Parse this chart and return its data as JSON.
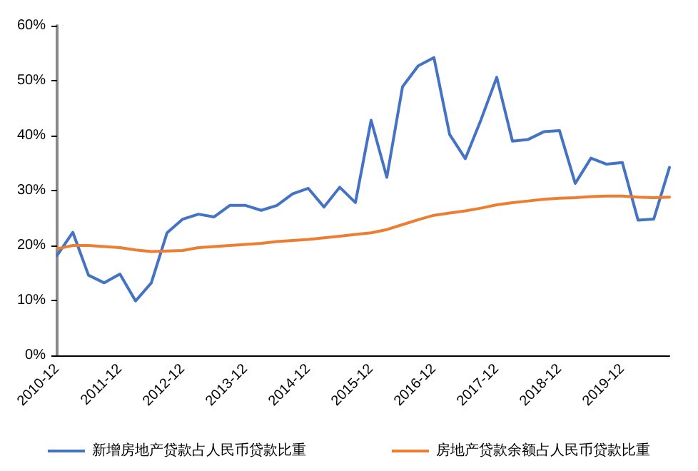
{
  "chart_data": {
    "type": "line",
    "categories": [
      "2010-12",
      null,
      null,
      null,
      "2011-12",
      null,
      null,
      null,
      "2012-12",
      null,
      null,
      null,
      "2013-12",
      null,
      null,
      null,
      "2014-12",
      null,
      null,
      null,
      "2015-12",
      null,
      null,
      null,
      "2016-12",
      null,
      null,
      null,
      "2017-12",
      null,
      null,
      null,
      "2018-12",
      null,
      null,
      null,
      "2019-12",
      null,
      null,
      null
    ],
    "series": [
      {
        "name": "新增房地产贷款占人民币贷款比重",
        "color": "#4472c4",
        "values": [
          18.2,
          22.4,
          14.6,
          13.2,
          14.8,
          9.9,
          13.2,
          22.3,
          24.8,
          25.7,
          25.2,
          27.3,
          27.3,
          26.4,
          27.3,
          29.4,
          30.4,
          27.0,
          30.6,
          27.8,
          42.8,
          32.4,
          48.9,
          52.7,
          54.2,
          40.2,
          35.8,
          42.9,
          50.6,
          39.0,
          39.3,
          40.7,
          40.9,
          31.3,
          35.9,
          34.8,
          35.1,
          24.6,
          24.8,
          34.2
        ]
      },
      {
        "name": "房地产贷款余额占人民币贷款比重",
        "color": "#ed7d31",
        "values": [
          19.4,
          20.0,
          20.0,
          19.8,
          19.6,
          19.2,
          18.9,
          19.0,
          19.1,
          19.6,
          19.8,
          20.0,
          20.2,
          20.4,
          20.7,
          20.9,
          21.1,
          21.4,
          21.7,
          22.0,
          22.3,
          22.9,
          23.8,
          24.7,
          25.5,
          25.9,
          26.3,
          26.8,
          27.4,
          27.8,
          28.1,
          28.4,
          28.6,
          28.7,
          28.9,
          29.0,
          29.0,
          28.8,
          28.7,
          28.8
        ]
      }
    ],
    "ylim": [
      0,
      60
    ],
    "yticks": [
      {
        "value": 0,
        "label": "0%"
      },
      {
        "value": 10,
        "label": "10%"
      },
      {
        "value": 20,
        "label": "20%"
      },
      {
        "value": 30,
        "label": "30%"
      },
      {
        "value": 40,
        "label": "40%"
      },
      {
        "value": 50,
        "label": "50%"
      },
      {
        "value": 60,
        "label": "60%"
      }
    ],
    "grid": false,
    "legend": "bottom",
    "marker": "none",
    "line_style": "solid"
  }
}
